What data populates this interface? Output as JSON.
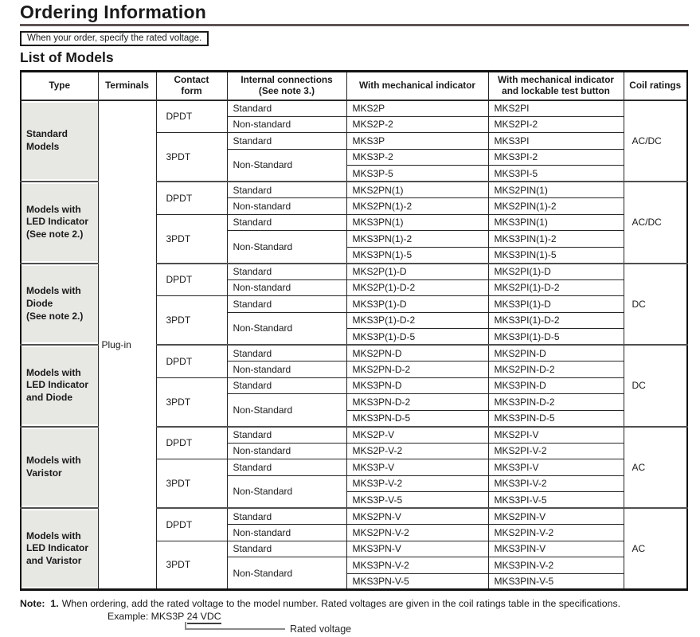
{
  "page": {
    "title": "Ordering Information",
    "order_note": "When your order, specify the rated voltage.",
    "section_title": "List of Models"
  },
  "table": {
    "headers": [
      "Type",
      "Terminals",
      "Contact\nform",
      "Internal connections\n(See note 3.)",
      "With mechanical indicator",
      "With mechanical indicator\nand lockable test button",
      "Coil ratings"
    ],
    "terminals": "Plug-in",
    "groups": [
      {
        "type": "Standard\nModels",
        "coil": "AC/DC",
        "rows": [
          {
            "contact": "DPDT",
            "contact_span": 2,
            "conn": "Standard",
            "conn_span": 1,
            "mech": "MKS2P",
            "lock": "MKS2PI"
          },
          {
            "conn": "Non-standard",
            "conn_span": 1,
            "mech": "MKS2P-2",
            "lock": "MKS2PI-2"
          },
          {
            "contact": "3PDT",
            "contact_span": 3,
            "conn": "Standard",
            "conn_span": 1,
            "mech": "MKS3P",
            "lock": "MKS3PI"
          },
          {
            "conn": "Non-Standard",
            "conn_span": 2,
            "mech": "MKS3P-2",
            "lock": "MKS3PI-2"
          },
          {
            "mech": "MKS3P-5",
            "lock": "MKS3PI-5"
          }
        ]
      },
      {
        "type": "Models with\nLED Indicator\n(See note 2.)",
        "coil": "AC/DC",
        "rows": [
          {
            "contact": "DPDT",
            "contact_span": 2,
            "conn": "Standard",
            "conn_span": 1,
            "mech": "MKS2PN(1)",
            "lock": "MKS2PIN(1)"
          },
          {
            "conn": "Non-standard",
            "conn_span": 1,
            "mech": "MKS2PN(1)-2",
            "lock": "MKS2PIN(1)-2"
          },
          {
            "contact": "3PDT",
            "contact_span": 3,
            "conn": "Standard",
            "conn_span": 1,
            "mech": "MKS3PN(1)",
            "lock": "MKS3PIN(1)"
          },
          {
            "conn": "Non-Standard",
            "conn_span": 2,
            "mech": "MKS3PN(1)-2",
            "lock": "MKS3PIN(1)-2"
          },
          {
            "mech": "MKS3PN(1)-5",
            "lock": "MKS3PIN(1)-5"
          }
        ]
      },
      {
        "type": "Models with\nDiode\n(See note 2.)",
        "coil": "DC",
        "rows": [
          {
            "contact": "DPDT",
            "contact_span": 2,
            "conn": "Standard",
            "conn_span": 1,
            "mech": "MKS2P(1)-D",
            "lock": "MKS2PI(1)-D"
          },
          {
            "conn": "Non-standard",
            "conn_span": 1,
            "mech": "MKS2P(1)-D-2",
            "lock": "MKS2PI(1)-D-2"
          },
          {
            "contact": "3PDT",
            "contact_span": 3,
            "conn": "Standard",
            "conn_span": 1,
            "mech": "MKS3P(1)-D",
            "lock": "MKS3PI(1)-D"
          },
          {
            "conn": "Non-Standard",
            "conn_span": 2,
            "mech": "MKS3P(1)-D-2",
            "lock": "MKS3PI(1)-D-2"
          },
          {
            "mech": "MKS3P(1)-D-5",
            "lock": "MKS3PI(1)-D-5"
          }
        ]
      },
      {
        "type": "Models with\nLED Indicator\nand Diode",
        "coil": "DC",
        "rows": [
          {
            "contact": "DPDT",
            "contact_span": 2,
            "conn": "Standard",
            "conn_span": 1,
            "mech": "MKS2PN-D",
            "lock": "MKS2PIN-D"
          },
          {
            "conn": "Non-standard",
            "conn_span": 1,
            "mech": "MKS2PN-D-2",
            "lock": "MKS2PIN-D-2"
          },
          {
            "contact": "3PDT",
            "contact_span": 3,
            "conn": "Standard",
            "conn_span": 1,
            "mech": "MKS3PN-D",
            "lock": "MKS3PIN-D"
          },
          {
            "conn": "Non-Standard",
            "conn_span": 2,
            "mech": "MKS3PN-D-2",
            "lock": "MKS3PIN-D-2"
          },
          {
            "mech": "MKS3PN-D-5",
            "lock": "MKS3PIN-D-5"
          }
        ]
      },
      {
        "type": "Models with\nVaristor",
        "coil": "AC",
        "rows": [
          {
            "contact": "DPDT",
            "contact_span": 2,
            "conn": "Standard",
            "conn_span": 1,
            "mech": "MKS2P-V",
            "lock": "MKS2PI-V"
          },
          {
            "conn": "Non-standard",
            "conn_span": 1,
            "mech": "MKS2P-V-2",
            "lock": "MKS2PI-V-2"
          },
          {
            "contact": "3PDT",
            "contact_span": 3,
            "conn": "Standard",
            "conn_span": 1,
            "mech": "MKS3P-V",
            "lock": "MKS3PI-V"
          },
          {
            "conn": "Non-Standard",
            "conn_span": 2,
            "mech": "MKS3P-V-2",
            "lock": "MKS3PI-V-2"
          },
          {
            "mech": "MKS3P-V-5",
            "lock": "MKS3PI-V-5"
          }
        ]
      },
      {
        "type": "Models with\nLED Indicator\nand Varistor",
        "coil": "AC",
        "rows": [
          {
            "contact": "DPDT",
            "contact_span": 2,
            "conn": "Standard",
            "conn_span": 1,
            "mech": "MKS2PN-V",
            "lock": "MKS2PIN-V"
          },
          {
            "conn": "Non-standard",
            "conn_span": 1,
            "mech": "MKS2PN-V-2",
            "lock": "MKS2PIN-V-2"
          },
          {
            "contact": "3PDT",
            "contact_span": 3,
            "conn": "Standard",
            "conn_span": 1,
            "mech": "MKS3PN-V",
            "lock": "MKS3PIN-V"
          },
          {
            "conn": "Non-Standard",
            "conn_span": 2,
            "mech": "MKS3PN-V-2",
            "lock": "MKS3PIN-V-2"
          },
          {
            "mech": "MKS3PN-V-5",
            "lock": "MKS3PIN-V-5"
          }
        ]
      }
    ]
  },
  "footer": {
    "note_label": "Note:",
    "note_number": "1.",
    "note_text": "When ordering, add the rated voltage to the model number. Rated voltages are given in the coil ratings table in the specifications.",
    "example_prefix": "Example: MKS3P ",
    "example_voltage": "24 VDC",
    "rated_voltage_label": "Rated voltage"
  },
  "colors": {
    "title_rule": "#5e5353",
    "type_cell_background": "#e7e7e4",
    "group_separator": "#4f4f4f"
  }
}
